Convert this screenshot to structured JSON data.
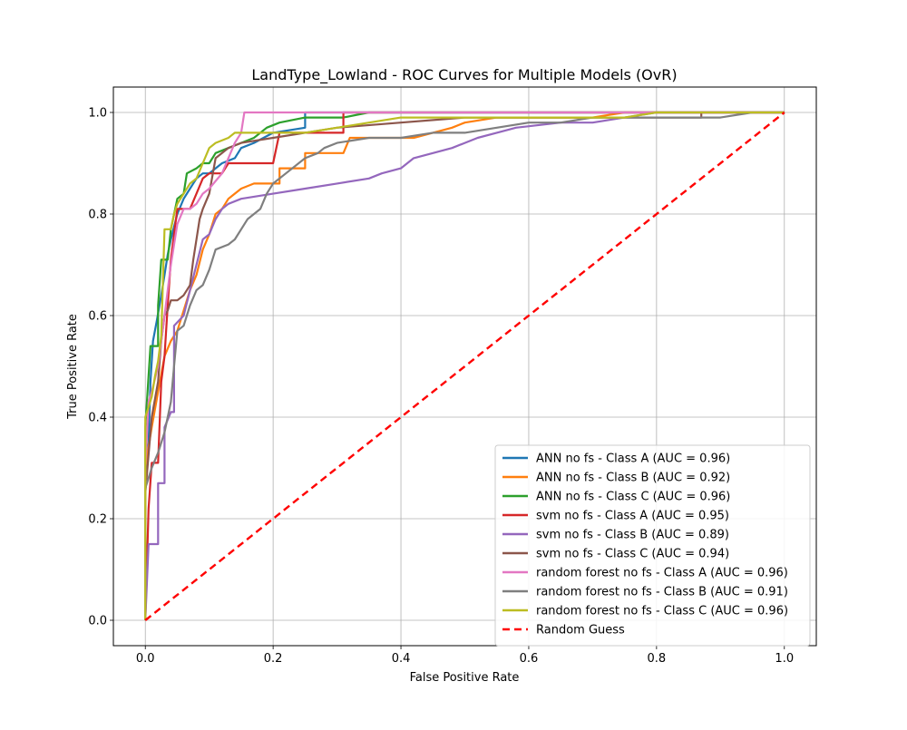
{
  "chart_data": {
    "type": "line",
    "title": "LandType_Lowland - ROC Curves for Multiple Models (OvR)",
    "xlabel": "False Positive Rate",
    "ylabel": "True Positive Rate",
    "xlim": [
      -0.05,
      1.05
    ],
    "ylim": [
      -0.05,
      1.05
    ],
    "x_ticks": [
      "0.0",
      "0.2",
      "0.4",
      "0.6",
      "0.8",
      "1.0"
    ],
    "y_ticks": [
      "0.0",
      "0.2",
      "0.4",
      "0.6",
      "0.8",
      "1.0"
    ],
    "grid": true,
    "legend_position": "lower-right",
    "series": [
      {
        "name": "ANN no fs - Class A (AUC = 0.96)",
        "color": "#1f77b4",
        "dash": "solid",
        "points": [
          [
            0,
            0
          ],
          [
            0,
            0.28
          ],
          [
            0.005,
            0.35
          ],
          [
            0.008,
            0.47
          ],
          [
            0.012,
            0.55
          ],
          [
            0.018,
            0.59
          ],
          [
            0.025,
            0.64
          ],
          [
            0.03,
            0.68
          ],
          [
            0.035,
            0.72
          ],
          [
            0.04,
            0.75
          ],
          [
            0.05,
            0.8
          ],
          [
            0.06,
            0.83
          ],
          [
            0.07,
            0.85
          ],
          [
            0.08,
            0.87
          ],
          [
            0.09,
            0.88
          ],
          [
            0.1,
            0.88
          ],
          [
            0.11,
            0.89
          ],
          [
            0.12,
            0.9
          ],
          [
            0.14,
            0.91
          ],
          [
            0.15,
            0.93
          ],
          [
            0.17,
            0.94
          ],
          [
            0.2,
            0.96
          ],
          [
            0.25,
            0.97
          ],
          [
            0.25,
            1.0
          ],
          [
            1,
            1.0
          ]
        ]
      },
      {
        "name": "ANN no fs - Class B (AUC = 0.92)",
        "color": "#ff7f0e",
        "dash": "solid",
        "points": [
          [
            0,
            0
          ],
          [
            0,
            0.3
          ],
          [
            0.01,
            0.38
          ],
          [
            0.02,
            0.45
          ],
          [
            0.03,
            0.52
          ],
          [
            0.04,
            0.55
          ],
          [
            0.05,
            0.57
          ],
          [
            0.06,
            0.61
          ],
          [
            0.07,
            0.65
          ],
          [
            0.08,
            0.68
          ],
          [
            0.09,
            0.73
          ],
          [
            0.1,
            0.76
          ],
          [
            0.11,
            0.8
          ],
          [
            0.12,
            0.81
          ],
          [
            0.13,
            0.83
          ],
          [
            0.15,
            0.85
          ],
          [
            0.17,
            0.86
          ],
          [
            0.21,
            0.86
          ],
          [
            0.21,
            0.89
          ],
          [
            0.25,
            0.89
          ],
          [
            0.25,
            0.92
          ],
          [
            0.31,
            0.92
          ],
          [
            0.32,
            0.95
          ],
          [
            0.42,
            0.95
          ],
          [
            0.45,
            0.96
          ],
          [
            0.48,
            0.97
          ],
          [
            0.5,
            0.98
          ],
          [
            0.55,
            0.99
          ],
          [
            0.7,
            0.99
          ],
          [
            0.75,
            1.0
          ],
          [
            1,
            1.0
          ]
        ]
      },
      {
        "name": "ANN no fs - Class C (AUC = 0.96)",
        "color": "#2ca02c",
        "dash": "solid",
        "points": [
          [
            0,
            0
          ],
          [
            0,
            0.38
          ],
          [
            0.008,
            0.54
          ],
          [
            0.02,
            0.54
          ],
          [
            0.02,
            0.62
          ],
          [
            0.025,
            0.71
          ],
          [
            0.035,
            0.71
          ],
          [
            0.04,
            0.77
          ],
          [
            0.05,
            0.83
          ],
          [
            0.06,
            0.84
          ],
          [
            0.065,
            0.88
          ],
          [
            0.08,
            0.89
          ],
          [
            0.09,
            0.9
          ],
          [
            0.1,
            0.9
          ],
          [
            0.11,
            0.92
          ],
          [
            0.13,
            0.93
          ],
          [
            0.15,
            0.94
          ],
          [
            0.17,
            0.95
          ],
          [
            0.19,
            0.97
          ],
          [
            0.21,
            0.98
          ],
          [
            0.25,
            0.99
          ],
          [
            0.31,
            0.99
          ],
          [
            0.35,
            1.0
          ],
          [
            1,
            1.0
          ]
        ]
      },
      {
        "name": "svm no fs - Class A (AUC = 0.95)",
        "color": "#d62728",
        "dash": "solid",
        "points": [
          [
            0,
            0
          ],
          [
            0.005,
            0.22
          ],
          [
            0.01,
            0.31
          ],
          [
            0.02,
            0.31
          ],
          [
            0.025,
            0.47
          ],
          [
            0.03,
            0.52
          ],
          [
            0.035,
            0.62
          ],
          [
            0.04,
            0.71
          ],
          [
            0.045,
            0.76
          ],
          [
            0.05,
            0.81
          ],
          [
            0.06,
            0.81
          ],
          [
            0.07,
            0.81
          ],
          [
            0.08,
            0.84
          ],
          [
            0.09,
            0.87
          ],
          [
            0.1,
            0.88
          ],
          [
            0.12,
            0.88
          ],
          [
            0.13,
            0.9
          ],
          [
            0.2,
            0.9
          ],
          [
            0.21,
            0.96
          ],
          [
            0.31,
            0.96
          ],
          [
            0.31,
            1.0
          ],
          [
            1,
            1.0
          ]
        ]
      },
      {
        "name": "svm no fs - Class B (AUC = 0.89)",
        "color": "#9467bd",
        "dash": "solid",
        "points": [
          [
            0,
            0
          ],
          [
            0.005,
            0.15
          ],
          [
            0.02,
            0.15
          ],
          [
            0.02,
            0.27
          ],
          [
            0.03,
            0.27
          ],
          [
            0.03,
            0.38
          ],
          [
            0.04,
            0.41
          ],
          [
            0.045,
            0.41
          ],
          [
            0.045,
            0.58
          ],
          [
            0.06,
            0.6
          ],
          [
            0.07,
            0.65
          ],
          [
            0.08,
            0.7
          ],
          [
            0.09,
            0.75
          ],
          [
            0.1,
            0.76
          ],
          [
            0.11,
            0.79
          ],
          [
            0.12,
            0.81
          ],
          [
            0.13,
            0.82
          ],
          [
            0.15,
            0.83
          ],
          [
            0.2,
            0.84
          ],
          [
            0.25,
            0.85
          ],
          [
            0.3,
            0.86
          ],
          [
            0.35,
            0.87
          ],
          [
            0.37,
            0.88
          ],
          [
            0.4,
            0.89
          ],
          [
            0.42,
            0.91
          ],
          [
            0.45,
            0.92
          ],
          [
            0.48,
            0.93
          ],
          [
            0.5,
            0.94
          ],
          [
            0.52,
            0.95
          ],
          [
            0.55,
            0.96
          ],
          [
            0.58,
            0.97
          ],
          [
            0.65,
            0.98
          ],
          [
            0.7,
            0.98
          ],
          [
            0.75,
            0.99
          ],
          [
            0.8,
            1.0
          ],
          [
            1,
            1.0
          ]
        ]
      },
      {
        "name": "svm no fs - Class C (AUC = 0.94)",
        "color": "#8c564b",
        "dash": "solid",
        "points": [
          [
            0,
            0
          ],
          [
            0,
            0.25
          ],
          [
            0.01,
            0.4
          ],
          [
            0.02,
            0.47
          ],
          [
            0.025,
            0.55
          ],
          [
            0.03,
            0.6
          ],
          [
            0.035,
            0.61
          ],
          [
            0.04,
            0.63
          ],
          [
            0.05,
            0.63
          ],
          [
            0.06,
            0.64
          ],
          [
            0.07,
            0.66
          ],
          [
            0.075,
            0.71
          ],
          [
            0.08,
            0.75
          ],
          [
            0.085,
            0.79
          ],
          [
            0.09,
            0.81
          ],
          [
            0.1,
            0.84
          ],
          [
            0.11,
            0.91
          ],
          [
            0.12,
            0.92
          ],
          [
            0.13,
            0.93
          ],
          [
            0.15,
            0.94
          ],
          [
            0.2,
            0.95
          ],
          [
            0.25,
            0.96
          ],
          [
            0.3,
            0.97
          ],
          [
            0.4,
            0.98
          ],
          [
            0.5,
            0.99
          ],
          [
            0.6,
            0.99
          ],
          [
            0.75,
            0.99
          ],
          [
            0.8,
            0.99
          ],
          [
            0.87,
            0.99
          ],
          [
            0.87,
            1.0
          ],
          [
            1,
            1.0
          ]
        ]
      },
      {
        "name": "random forest no fs - Class A (AUC = 0.96)",
        "color": "#e377c2",
        "dash": "solid",
        "points": [
          [
            0,
            0
          ],
          [
            0,
            0.3
          ],
          [
            0.005,
            0.43
          ],
          [
            0.01,
            0.45
          ],
          [
            0.02,
            0.5
          ],
          [
            0.03,
            0.6
          ],
          [
            0.035,
            0.65
          ],
          [
            0.04,
            0.7
          ],
          [
            0.05,
            0.78
          ],
          [
            0.06,
            0.81
          ],
          [
            0.07,
            0.81
          ],
          [
            0.08,
            0.82
          ],
          [
            0.09,
            0.84
          ],
          [
            0.1,
            0.85
          ],
          [
            0.12,
            0.88
          ],
          [
            0.13,
            0.91
          ],
          [
            0.14,
            0.94
          ],
          [
            0.15,
            0.96
          ],
          [
            0.155,
            1.0
          ],
          [
            1,
            1.0
          ]
        ]
      },
      {
        "name": "random forest no fs - Class B (AUC = 0.91)",
        "color": "#7f7f7f",
        "dash": "solid",
        "points": [
          [
            0,
            0
          ],
          [
            0,
            0.26
          ],
          [
            0.01,
            0.3
          ],
          [
            0.02,
            0.33
          ],
          [
            0.03,
            0.37
          ],
          [
            0.04,
            0.43
          ],
          [
            0.045,
            0.5
          ],
          [
            0.05,
            0.57
          ],
          [
            0.06,
            0.58
          ],
          [
            0.07,
            0.62
          ],
          [
            0.08,
            0.65
          ],
          [
            0.09,
            0.66
          ],
          [
            0.1,
            0.69
          ],
          [
            0.11,
            0.73
          ],
          [
            0.13,
            0.74
          ],
          [
            0.14,
            0.75
          ],
          [
            0.16,
            0.79
          ],
          [
            0.18,
            0.81
          ],
          [
            0.19,
            0.84
          ],
          [
            0.2,
            0.86
          ],
          [
            0.22,
            0.88
          ],
          [
            0.25,
            0.91
          ],
          [
            0.27,
            0.92
          ],
          [
            0.28,
            0.93
          ],
          [
            0.3,
            0.94
          ],
          [
            0.35,
            0.95
          ],
          [
            0.4,
            0.95
          ],
          [
            0.45,
            0.96
          ],
          [
            0.5,
            0.96
          ],
          [
            0.55,
            0.97
          ],
          [
            0.6,
            0.98
          ],
          [
            0.65,
            0.98
          ],
          [
            0.7,
            0.99
          ],
          [
            0.8,
            0.99
          ],
          [
            0.9,
            0.99
          ],
          [
            0.95,
            1.0
          ],
          [
            1,
            1.0
          ]
        ]
      },
      {
        "name": "random forest no fs - Class C (AUC = 0.96)",
        "color": "#bcbd22",
        "dash": "solid",
        "points": [
          [
            0,
            0
          ],
          [
            0,
            0.4
          ],
          [
            0.005,
            0.42
          ],
          [
            0.01,
            0.44
          ],
          [
            0.015,
            0.48
          ],
          [
            0.02,
            0.51
          ],
          [
            0.025,
            0.56
          ],
          [
            0.03,
            0.77
          ],
          [
            0.04,
            0.77
          ],
          [
            0.045,
            0.8
          ],
          [
            0.05,
            0.82
          ],
          [
            0.06,
            0.84
          ],
          [
            0.07,
            0.86
          ],
          [
            0.08,
            0.87
          ],
          [
            0.09,
            0.9
          ],
          [
            0.1,
            0.93
          ],
          [
            0.11,
            0.94
          ],
          [
            0.13,
            0.95
          ],
          [
            0.14,
            0.96
          ],
          [
            0.25,
            0.96
          ],
          [
            0.3,
            0.97
          ],
          [
            0.35,
            0.98
          ],
          [
            0.4,
            0.99
          ],
          [
            0.5,
            0.99
          ],
          [
            0.6,
            0.99
          ],
          [
            0.75,
            0.99
          ],
          [
            0.8,
            1.0
          ],
          [
            1,
            1.0
          ]
        ]
      },
      {
        "name": "Random Guess",
        "color": "#ff0000",
        "dash": "dashed",
        "points": [
          [
            0,
            0
          ],
          [
            1,
            1
          ]
        ]
      }
    ]
  }
}
